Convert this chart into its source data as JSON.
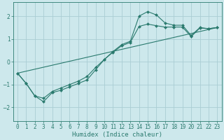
{
  "xlabel": "Humidex (Indice chaleur)",
  "ylabel": "",
  "background_color": "#cde8ec",
  "grid_color": "#aacdd4",
  "line_color": "#2a7a6e",
  "xlim": [
    -0.5,
    23.5
  ],
  "ylim": [
    -2.6,
    2.6
  ],
  "x_ticks": [
    0,
    1,
    2,
    3,
    4,
    5,
    6,
    7,
    8,
    9,
    10,
    11,
    12,
    13,
    14,
    15,
    16,
    17,
    18,
    19,
    20,
    21,
    22,
    23
  ],
  "y_ticks": [
    -2,
    -1,
    0,
    1,
    2
  ],
  "line1_x": [
    0,
    1,
    2,
    3,
    4,
    5,
    6,
    7,
    8,
    9,
    10,
    11,
    12,
    13,
    14,
    15,
    16,
    17,
    18,
    19,
    20,
    21,
    22,
    23
  ],
  "line1_y": [
    -0.5,
    -0.95,
    -1.5,
    -1.75,
    -1.35,
    -1.25,
    -1.1,
    -0.95,
    -0.8,
    -0.35,
    0.1,
    0.45,
    0.75,
    0.9,
    2.0,
    2.2,
    2.05,
    1.7,
    1.6,
    1.6,
    1.15,
    1.5,
    1.45,
    1.5
  ],
  "line2_x": [
    0,
    1,
    2,
    3,
    4,
    5,
    6,
    7,
    8,
    9,
    10,
    11,
    12,
    13,
    14,
    15,
    16,
    17,
    18,
    19,
    20,
    21,
    22,
    23
  ],
  "line2_y": [
    -0.5,
    -0.95,
    -1.5,
    -1.6,
    -1.3,
    -1.15,
    -1.0,
    -0.85,
    -0.65,
    -0.25,
    0.1,
    0.42,
    0.7,
    0.85,
    1.55,
    1.65,
    1.58,
    1.52,
    1.52,
    1.52,
    1.1,
    1.48,
    1.45,
    1.5
  ],
  "line3_x": [
    0,
    23
  ],
  "line3_y": [
    -0.5,
    1.5
  ],
  "marker": "D",
  "markersize": 2.0,
  "linewidth": 0.8,
  "tick_fontsize": 5.5,
  "xlabel_fontsize": 6.5
}
